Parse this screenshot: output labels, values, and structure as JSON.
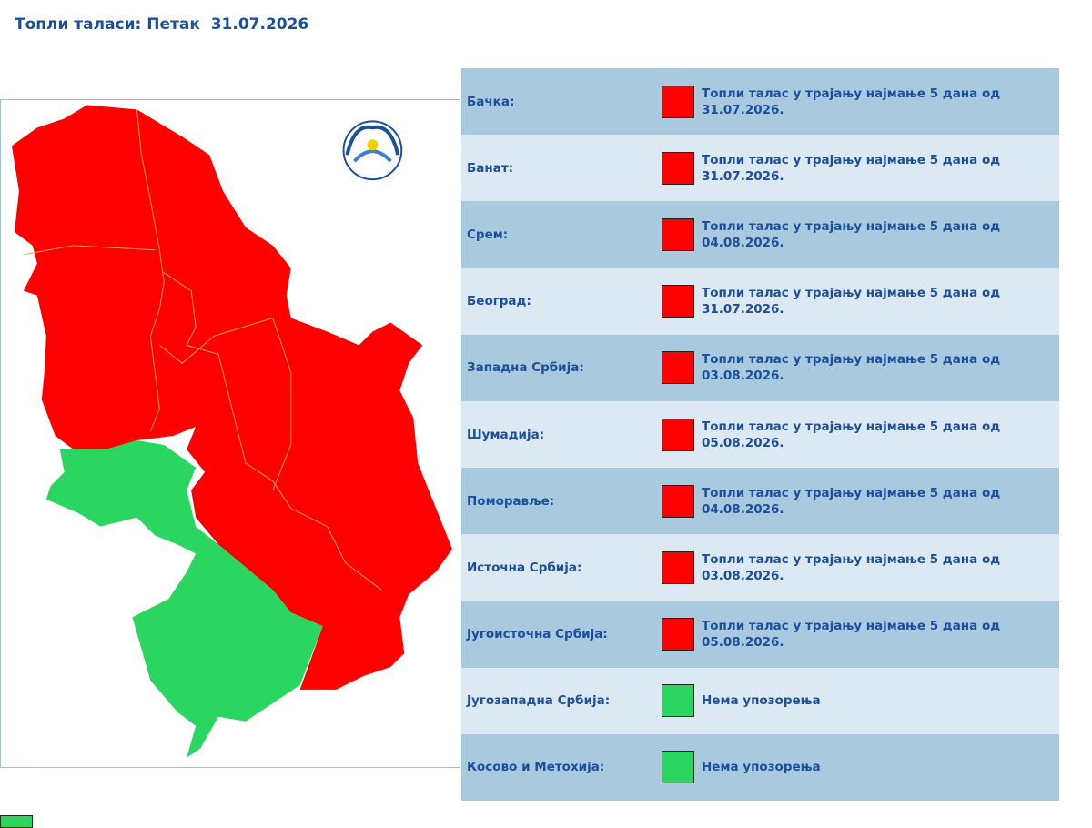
{
  "header": {
    "title": "Топли таласи: Петак  31.07.2026"
  },
  "table": {
    "rows": [
      {
        "region": "Бачка:",
        "status": "Топли талас у трајању најмање 5 дана од 31.07.2026.",
        "color": "#ff0000"
      },
      {
        "region": "Банат:",
        "status": "Топли талас у трајању најмање 5 дана од 31.07.2026.",
        "color": "#ff0000"
      },
      {
        "region": "Срем:",
        "status": "Топли талас у трајању најмање 5 дана од 04.08.2026.",
        "color": "#ff0000"
      },
      {
        "region": "Београд:",
        "status": "Топли талас у трајању најмање 5 дана од 31.07.2026.",
        "color": "#ff0000"
      },
      {
        "region": "Западна Србија:",
        "status": "Топли талас у трајању најмање 5 дана од 03.08.2026.",
        "color": "#ff0000"
      },
      {
        "region": "Шумадија:",
        "status": "Топли талас у трајању најмање 5 дана од 05.08.2026.",
        "color": "#ff0000"
      },
      {
        "region": "Поморавље:",
        "status": "Топли талас у трајању најмање 5 дана од 04.08.2026.",
        "color": "#ff0000"
      },
      {
        "region": "Источна Србија:",
        "status": "Топли талас у трајању најмање 5 дана од 03.08.2026.",
        "color": "#ff0000"
      },
      {
        "region": "Југоисточна Србија:",
        "status": "Топли талас у трајању најмање 5 дана од 05.08.2026.",
        "color": "#ff0000"
      },
      {
        "region": "Југозападна Србија:",
        "status": "Нема упозорења",
        "color": "#2bd660"
      },
      {
        "region": "Косово и Метохија:",
        "status": "Нема упозорења",
        "color": "#2bd660"
      }
    ]
  }
}
